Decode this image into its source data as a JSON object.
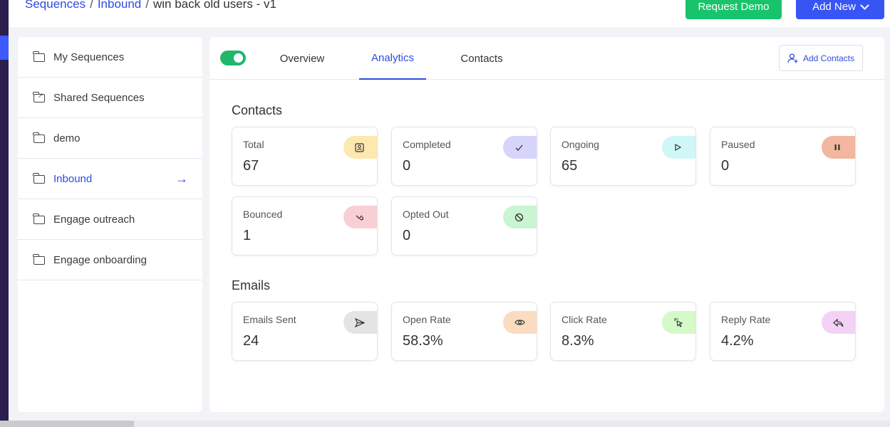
{
  "breadcrumb": {
    "items": [
      "Sequences",
      "Inbound"
    ],
    "current": "win back old users - v1",
    "separator": "/"
  },
  "header": {
    "request_demo_label": "Request Demo",
    "add_new_label": "Add New"
  },
  "sidebar": {
    "items": [
      {
        "label": "My Sequences"
      },
      {
        "label": "Shared Sequences"
      },
      {
        "label": "demo"
      },
      {
        "label": "Inbound"
      },
      {
        "label": "Engage outreach"
      },
      {
        "label": "Engage onboarding"
      }
    ]
  },
  "tabs": {
    "overview": "Overview",
    "analytics": "Analytics",
    "contacts": "Contacts"
  },
  "add_contacts_label": "Add Contacts",
  "contacts_section": {
    "title": "Contacts",
    "cards": [
      {
        "label": "Total",
        "value": "67",
        "icon": "contact-card-icon",
        "color": "#fde8b0"
      },
      {
        "label": "Completed",
        "value": "0",
        "icon": "check-icon",
        "color": "#d6d4fb"
      },
      {
        "label": "Ongoing",
        "value": "65",
        "icon": "play-icon",
        "color": "#cff7f6"
      },
      {
        "label": "Paused",
        "value": "0",
        "icon": "pause-icon",
        "color": "#f2b79e"
      },
      {
        "label": "Bounced",
        "value": "1",
        "icon": "bounce-arrow-icon",
        "color": "#f8cfd3"
      },
      {
        "label": "Opted Out",
        "value": "0",
        "icon": "ban-icon",
        "color": "#c9f5d2"
      }
    ]
  },
  "emails_section": {
    "title": "Emails",
    "cards": [
      {
        "label": "Emails Sent",
        "value": "24",
        "icon": "send-icon",
        "color": "#e4e4e6"
      },
      {
        "label": "Open Rate",
        "value": "58.3%",
        "icon": "eye-icon",
        "color": "#fadcc0"
      },
      {
        "label": "Click Rate",
        "value": "8.3%",
        "icon": "click-cursor-icon",
        "color": "#d6f9c8"
      },
      {
        "label": "Reply Rate",
        "value": "4.2%",
        "icon": "reply-icon",
        "color": "#f4d2f6"
      }
    ]
  },
  "colors": {
    "accent": "#2f4be0",
    "primary_button": "#3755f5",
    "demo_button": "#17c46b",
    "toggle_on": "#1fb86a"
  }
}
